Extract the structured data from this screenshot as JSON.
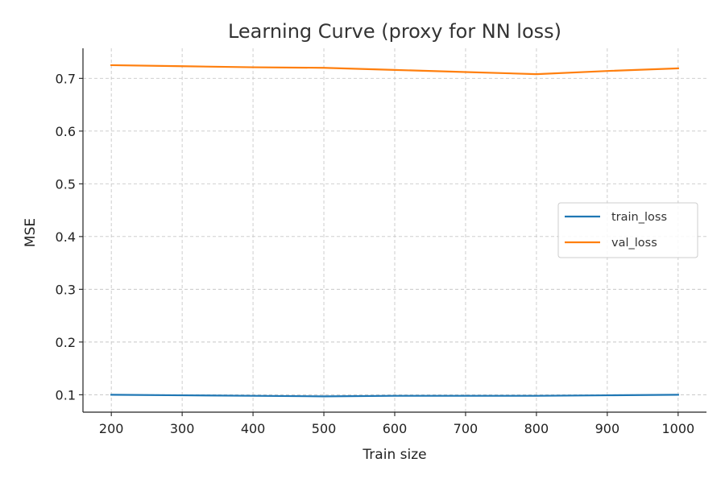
{
  "chart_data": {
    "type": "line",
    "title": "Learning Curve (proxy for NN loss)",
    "xlabel": "Train size",
    "ylabel": "MSE",
    "x": [
      200,
      300,
      400,
      500,
      600,
      700,
      800,
      900,
      1000
    ],
    "xlim": [
      160,
      1040
    ],
    "ylim": [
      0.067,
      0.757
    ],
    "xticks": [
      200,
      300,
      400,
      500,
      600,
      700,
      800,
      900,
      1000
    ],
    "xtick_labels": [
      "200",
      "300",
      "400",
      "500",
      "600",
      "700",
      "800",
      "900",
      "1000"
    ],
    "yticks": [
      0.1,
      0.2,
      0.3,
      0.4,
      0.5,
      0.6,
      0.7
    ],
    "ytick_labels": [
      "0.1",
      "0.2",
      "0.3",
      "0.4",
      "0.5",
      "0.6",
      "0.7"
    ],
    "grid": true,
    "legend_position": "center-right",
    "series": [
      {
        "name": "train_loss",
        "color": "#1f77b4",
        "values": [
          0.1,
          0.099,
          0.098,
          0.097,
          0.098,
          0.098,
          0.098,
          0.099,
          0.1
        ]
      },
      {
        "name": "val_loss",
        "color": "#ff7f0e",
        "values": [
          0.725,
          0.723,
          0.721,
          0.72,
          0.716,
          0.712,
          0.708,
          0.714,
          0.719
        ]
      }
    ]
  }
}
